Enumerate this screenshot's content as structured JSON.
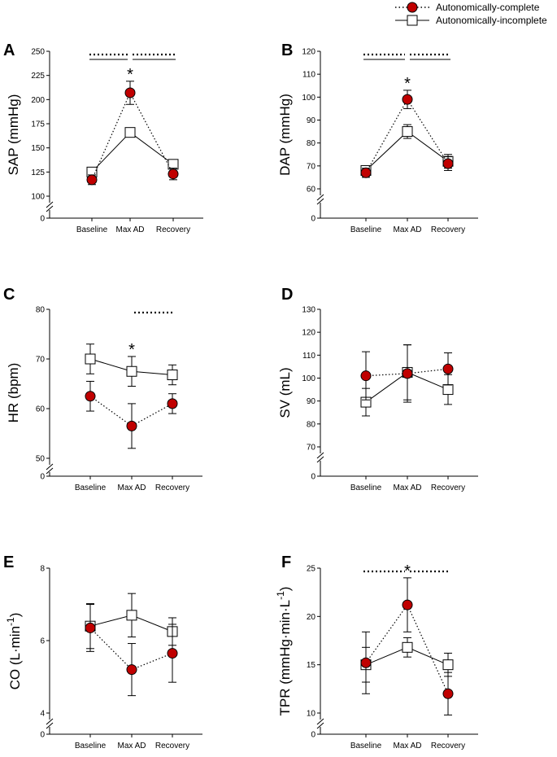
{
  "legend": {
    "complete": {
      "label": "Autonomically-complete",
      "marker": "filled-circle",
      "line": "dotted"
    },
    "incomplete": {
      "label": "Autonomically-incomplete",
      "marker": "open-square",
      "line": "solid"
    }
  },
  "colors": {
    "complete_fill": "#c00000",
    "incomplete_fill": "#ffffff",
    "axis": "#000000"
  },
  "chart_data": [
    {
      "panel": "A",
      "type": "line",
      "ylabel": "SAP (mmHg)",
      "categories": [
        "Baseline",
        "Max AD",
        "Recovery"
      ],
      "ylim": [
        100,
        250
      ],
      "yticks": [
        100,
        125,
        150,
        175,
        200,
        225,
        250
      ],
      "ybreak_zero": "0",
      "series": [
        {
          "name": "Autonomically-complete",
          "values": [
            117,
            207,
            123
          ],
          "err": [
            5,
            12,
            6
          ]
        },
        {
          "name": "Autonomically-incomplete",
          "values": [
            125,
            166,
            133
          ],
          "err": [
            3,
            4,
            4
          ]
        }
      ],
      "stars": [
        {
          "category": "Max AD",
          "text": "*"
        }
      ],
      "sig_bars": [
        {
          "from": "Baseline",
          "to": "Max AD"
        },
        {
          "from": "Max AD",
          "to": "Recovery"
        }
      ]
    },
    {
      "panel": "B",
      "type": "line",
      "ylabel": "DAP (mmHg)",
      "categories": [
        "Baseline",
        "Max AD",
        "Recovery"
      ],
      "ylim": [
        55,
        120
      ],
      "yticks": [
        60,
        70,
        80,
        90,
        100,
        110,
        120
      ],
      "ybreak_zero": "0",
      "series": [
        {
          "name": "Autonomically-complete",
          "values": [
            67,
            99,
            71
          ],
          "err": [
            2,
            4,
            3
          ]
        },
        {
          "name": "Autonomically-incomplete",
          "values": [
            68,
            85,
            72
          ],
          "err": [
            2,
            3,
            3
          ]
        }
      ],
      "stars": [
        {
          "category": "Max AD",
          "text": "*"
        }
      ],
      "sig_bars": [
        {
          "from": "Baseline",
          "to": "Max AD"
        },
        {
          "from": "Max AD",
          "to": "Recovery"
        }
      ]
    },
    {
      "panel": "C",
      "type": "line",
      "ylabel": "HR (bpm)",
      "categories": [
        "Baseline",
        "Max AD",
        "Recovery"
      ],
      "ylim": [
        50,
        80
      ],
      "yticks": [
        50,
        60,
        70,
        80
      ],
      "ybreak_zero": "0",
      "series": [
        {
          "name": "Autonomically-complete",
          "values": [
            62.5,
            56.5,
            61
          ],
          "err": [
            3,
            4.5,
            2
          ]
        },
        {
          "name": "Autonomically-incomplete",
          "values": [
            70,
            67.5,
            66.8
          ],
          "err": [
            3,
            3,
            2
          ]
        }
      ],
      "stars": [
        {
          "category": "Max AD",
          "text": "*"
        }
      ],
      "sig_bars": [
        {
          "from": "Max AD",
          "to": "Recovery",
          "dotted_only": true
        }
      ]
    },
    {
      "panel": "D",
      "type": "line",
      "ylabel": "SV (mL)",
      "categories": [
        "Baseline",
        "Max AD",
        "Recovery"
      ],
      "ylim": [
        70,
        130
      ],
      "yticks": [
        70,
        80,
        90,
        100,
        110,
        120,
        130
      ],
      "ybreak_zero": "0",
      "series": [
        {
          "name": "Autonomically-complete",
          "values": [
            101,
            102,
            104
          ],
          "err": [
            10.5,
            12.5,
            7
          ]
        },
        {
          "name": "Autonomically-incomplete",
          "values": [
            89.5,
            102.5,
            95
          ],
          "err": [
            6,
            12,
            6.5
          ]
        }
      ],
      "stars": [],
      "sig_bars": []
    },
    {
      "panel": "E",
      "type": "line",
      "ylabel": "CO (L·min",
      "ylabel_sup": "-1",
      "ylabel_close": ")",
      "categories": [
        "Baseline",
        "Max AD",
        "Recovery"
      ],
      "ylim": [
        4,
        8
      ],
      "yticks": [
        4,
        6,
        8
      ],
      "ybreak_zero": "0",
      "series": [
        {
          "name": "Autonomically-complete",
          "values": [
            6.35,
            5.2,
            5.65
          ],
          "err": [
            0.65,
            0.72,
            0.8
          ]
        },
        {
          "name": "Autonomically-incomplete",
          "values": [
            6.4,
            6.7,
            6.25
          ],
          "err": [
            0.62,
            0.6,
            0.38
          ]
        }
      ],
      "stars": [],
      "sig_bars": []
    },
    {
      "panel": "F",
      "type": "line",
      "ylabel": "TPR (mmHg·min·L",
      "ylabel_sup": "-1",
      "ylabel_close": ")",
      "categories": [
        "Baseline",
        "Max AD",
        "Recovery"
      ],
      "ylim": [
        10,
        25
      ],
      "yticks": [
        10,
        15,
        20,
        25
      ],
      "ybreak_zero": "0",
      "series": [
        {
          "name": "Autonomically-complete",
          "values": [
            15.2,
            21.2,
            12
          ],
          "err": [
            3.2,
            2.8,
            2.2
          ]
        },
        {
          "name": "Autonomically-incomplete",
          "values": [
            15,
            16.8,
            15
          ],
          "err": [
            1.8,
            1,
            1.2
          ]
        }
      ],
      "stars": [
        {
          "category": "Max AD",
          "text": "*"
        }
      ],
      "sig_bars": [
        {
          "from": "Baseline",
          "to": "Max AD",
          "dotted_only": true
        },
        {
          "from": "Max AD",
          "to": "Recovery",
          "dotted_only": true
        }
      ]
    }
  ]
}
